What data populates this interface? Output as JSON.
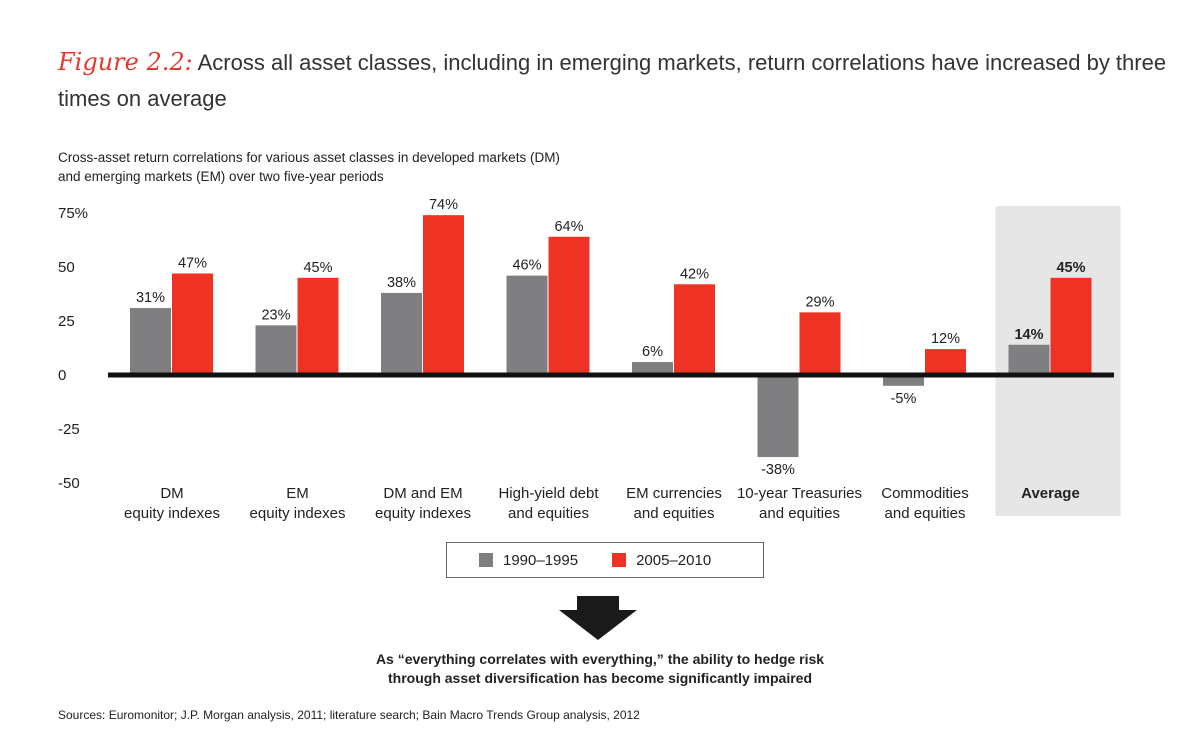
{
  "title": {
    "figure_label": "Figure 2.2:",
    "text": "Across all asset classes, including in emerging markets, return correlations have increased by three times on average"
  },
  "subtitle": {
    "line1": "Cross-asset return correlations for various asset classes in developed markets (DM)",
    "line2": "and emerging markets (EM) over two five-year periods"
  },
  "colors": {
    "series1": "#7f7f81",
    "series2": "#ee3224",
    "highlight_bg": "#e6e6e7",
    "axis": "#111111",
    "accent": "#e03a2f"
  },
  "chart_data": {
    "type": "bar",
    "ylim": [
      -50,
      75
    ],
    "yticks": [
      "75%",
      "50",
      "25",
      "0",
      "-25",
      "-50"
    ],
    "ytick_values": [
      75,
      50,
      25,
      0,
      -25,
      -50
    ],
    "categories": [
      [
        "DM",
        "equity indexes"
      ],
      [
        "EM",
        "equity indexes"
      ],
      [
        "DM and EM",
        "equity indexes"
      ],
      [
        "High-yield debt",
        "and equities"
      ],
      [
        "EM currencies",
        "and equities"
      ],
      [
        "10-year Treasuries",
        "and equities"
      ],
      [
        "Commodities",
        "and equities"
      ],
      [
        "Average"
      ]
    ],
    "highlighted_category": 7,
    "series": [
      {
        "name": "1990–1995",
        "values": [
          31,
          23,
          38,
          46,
          6,
          -38,
          -5,
          14
        ],
        "labels": [
          "31%",
          "23%",
          "38%",
          "46%",
          "6%",
          "-38%",
          "-5%",
          "14%"
        ]
      },
      {
        "name": "2005–2010",
        "values": [
          47,
          45,
          74,
          64,
          42,
          29,
          12,
          45
        ],
        "labels": [
          "47%",
          "45%",
          "74%",
          "64%",
          "42%",
          "29%",
          "12%",
          "45%"
        ]
      }
    ]
  },
  "conclusion": {
    "line1": "As “everything correlates with everything,” the ability to hedge risk",
    "line2": "through asset diversification has become significantly impaired"
  },
  "source": "Sources: Euromonitor; J.P. Morgan analysis, 2011; literature search; Bain Macro Trends Group analysis, 2012"
}
